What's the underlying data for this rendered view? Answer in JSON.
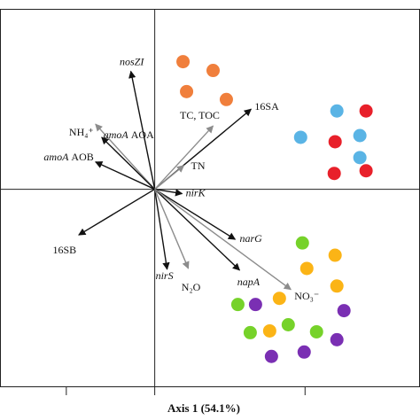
{
  "chart_data": {
    "type": "biplot",
    "xlabel": "Axis 1 (54.1%)",
    "xlim": [
      -1.75,
      3.0
    ],
    "ylim": [
      -2.25,
      2.05
    ],
    "xticks": [
      -1.0,
      0,
      1.7
    ],
    "series": [
      {
        "color": "#f07f3c",
        "x": [
          0.32,
          0.66,
          0.36,
          0.81
        ],
        "y": [
          1.45,
          1.35,
          1.11,
          1.02
        ]
      },
      {
        "color": "#5ab4e5",
        "x": [
          2.06,
          1.65,
          2.32,
          2.32
        ],
        "y": [
          0.89,
          0.59,
          0.61,
          0.36
        ]
      },
      {
        "color": "#e8202a",
        "x": [
          2.39,
          2.04,
          2.03,
          2.39
        ],
        "y": [
          0.89,
          0.54,
          0.18,
          0.21
        ]
      },
      {
        "color": "#76d22a",
        "x": [
          1.67,
          1.08,
          1.51,
          1.83,
          0.94
        ],
        "y": [
          -0.61,
          -1.63,
          -1.54,
          -1.62,
          -1.31
        ]
      },
      {
        "color": "#fbb416",
        "x": [
          2.04,
          1.72,
          2.06,
          1.41,
          1.3
        ],
        "y": [
          -0.75,
          -0.9,
          -1.1,
          -1.24,
          -1.61
        ]
      },
      {
        "color": "#7a2fb3",
        "x": [
          1.14,
          2.14,
          2.06,
          1.69,
          1.32
        ],
        "y": [
          -1.31,
          -1.38,
          -1.71,
          -1.85,
          -1.9
        ]
      }
    ],
    "arrows": [
      {
        "label": "nosZI",
        "italic": true,
        "color": "#111111",
        "x": -0.27,
        "y": 1.34
      },
      {
        "label": "16SA",
        "italic": false,
        "color": "#111111",
        "x": 1.09,
        "y": 0.91
      },
      {
        "label": "TC, TOC",
        "italic": false,
        "color": "#8c8c8c",
        "x": 0.66,
        "y": 0.72
      },
      {
        "label": "NH₄⁺",
        "italic": false,
        "color": "#8c8c8c",
        "x": -0.67,
        "y": 0.74
      },
      {
        "label": "amoA",
        "suffix": "AOA",
        "italic": true,
        "color": "#111111",
        "x": -0.6,
        "y": 0.59
      },
      {
        "label": "amoA",
        "suffix": "AOB",
        "italic": true,
        "color": "#111111",
        "x": -0.67,
        "y": 0.31
      },
      {
        "label": "TN",
        "italic": false,
        "color": "#8c8c8c",
        "x": 0.33,
        "y": 0.27
      },
      {
        "label": "nirK",
        "italic": true,
        "color": "#111111",
        "x": 0.31,
        "y": -0.05
      },
      {
        "label": "16SB",
        "italic": false,
        "color": "#111111",
        "x": -0.86,
        "y": -0.52
      },
      {
        "label": "narG",
        "italic": true,
        "color": "#111111",
        "x": 0.91,
        "y": -0.57
      },
      {
        "label": "nirS",
        "italic": true,
        "color": "#111111",
        "x": 0.14,
        "y": -0.91
      },
      {
        "label": "N₂O",
        "italic": false,
        "color": "#8c8c8c",
        "x": 0.38,
        "y": -0.9
      },
      {
        "label": "napA",
        "italic": true,
        "color": "#111111",
        "x": 0.96,
        "y": -0.92
      },
      {
        "label": "NO₃⁻",
        "italic": false,
        "color": "#8c8c8c",
        "x": 1.54,
        "y": -1.14
      }
    ]
  }
}
